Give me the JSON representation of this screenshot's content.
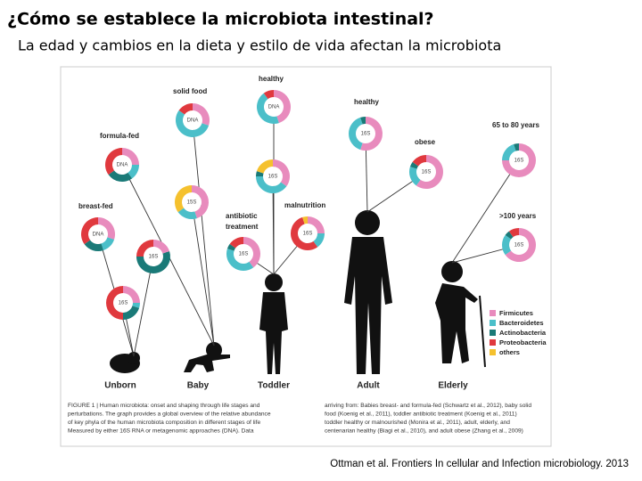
{
  "title": "¿Cómo se establece la microbiota intestinal?",
  "subtitle": "La edad y cambios en la dieta y estilo de vida afectan la microbiota",
  "figure": {
    "labels": [
      "healthy",
      "solid food",
      "formula-fed",
      "breast-fed",
      "antibiotic",
      "treatment",
      "malnutrition",
      "healthy",
      "obese",
      "65 to 80 years",
      ">100 years"
    ],
    "stages": [
      "Unborn",
      "Baby",
      "Toddler",
      "Adult",
      "Elderly"
    ],
    "legend": [
      {
        "name": "Firmicutes",
        "color": "#e88bbd"
      },
      {
        "name": "Bacteroidetes",
        "color": "#4bbfc9"
      },
      {
        "name": "Actinobacteria",
        "color": "#1a7a78"
      },
      {
        "name": "Proteobacteria",
        "color": "#e0393e"
      },
      {
        "name": "others",
        "color": "#f5c12e"
      }
    ],
    "donuts": [
      {
        "label": "DNA",
        "segments": [
          30,
          15,
          20,
          35,
          0
        ]
      },
      {
        "label": "DNA",
        "segments": [
          25,
          15,
          25,
          35,
          0
        ]
      },
      {
        "label": "DNA",
        "segments": [
          30,
          55,
          0,
          15,
          0
        ]
      },
      {
        "label": "DNA",
        "segments": [
          45,
          45,
          0,
          10,
          0
        ]
      },
      {
        "label": "15S",
        "segments": [
          45,
          20,
          0,
          0,
          35
        ]
      },
      {
        "label": "16S",
        "segments": [
          35,
          40,
          5,
          0,
          20
        ]
      },
      {
        "label": "16S",
        "segments": [
          20,
          0,
          55,
          25,
          0
        ]
      },
      {
        "label": "16S",
        "segments": [
          25,
          5,
          20,
          50,
          0
        ]
      },
      {
        "label": "16S",
        "segments": [
          40,
          40,
          5,
          15,
          0
        ]
      },
      {
        "label": "16S",
        "segments": [
          25,
          15,
          0,
          55,
          5
        ]
      },
      {
        "label": "16S",
        "segments": [
          55,
          40,
          5,
          0,
          0
        ]
      },
      {
        "label": "16S",
        "segments": [
          60,
          20,
          5,
          15,
          0
        ]
      },
      {
        "label": "16S",
        "segments": [
          75,
          20,
          5,
          0,
          0
        ]
      },
      {
        "label": "16S",
        "segments": [
          65,
          20,
          5,
          10,
          0
        ]
      }
    ],
    "caption_left": [
      "FIGURE 1 | Human microbiota: onset and shaping through life stages and",
      "perturbations. The graph provides a global overview of the relative abundance",
      "of key phyla of the human microbiota composition in different stages of life",
      "Measured by either 16S RNA or metagenomic approaches (DNA). Data"
    ],
    "caption_right": [
      "arriving from: Babies breast- and formula-fed (Schwartz et al., 2012), baby solid",
      "food (Koenig et al., 2011), toddler antibiotic treatment (Koenig et al., 2011)",
      "toddler healthy or malnourished (Monira et al., 2011), adult, elderly, and",
      "centenarian healthy (Biagi et al., 2010), and adult obese (Zhang et al., 2009)"
    ]
  },
  "citation": "Ottman et al. Frontiers In cellular and Infection microbiology. 2013"
}
